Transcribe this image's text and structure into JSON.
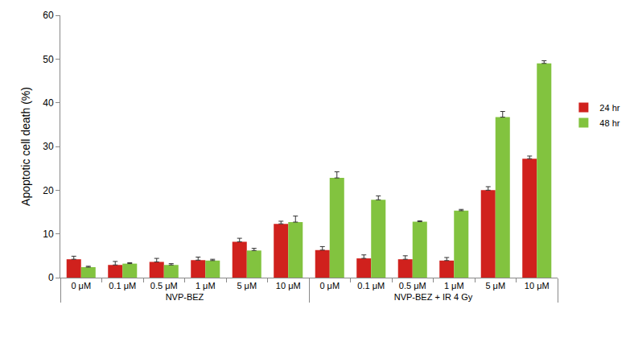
{
  "chart_data": {
    "type": "bar",
    "y_label": "Apoptotic cell death (%)",
    "categories": [
      "0 μM",
      "0.1 μM",
      "0.5 μM",
      "1 μM",
      "5 μM",
      "10 μM",
      "0 μM",
      "0.1 μM",
      "0.5 μM",
      "1 μM",
      "5 μM",
      "10 μM"
    ],
    "groups": [
      "NVP-BEZ",
      "NVP-BEZ",
      "NVP-BEZ",
      "NVP-BEZ",
      "NVP-BEZ",
      "NVP-BEZ",
      "NVP-BEZ + IR 4 Gy",
      "NVP-BEZ + IR 4 Gy",
      "NVP-BEZ + IR 4 Gy",
      "NVP-BEZ + IR 4 Gy",
      "NVP-BEZ + IR 4 Gy",
      "NVP-BEZ + IR 4 Gy"
    ],
    "series": [
      {
        "name": "24 hr",
        "color": "#d0211d",
        "values": [
          4.2,
          2.9,
          3.6,
          4.0,
          8.2,
          12.3,
          6.3,
          4.4,
          4.2,
          3.9,
          20.0,
          27.2
        ],
        "errors": [
          0.7,
          0.8,
          0.8,
          0.7,
          0.8,
          0.6,
          0.8,
          0.8,
          0.8,
          0.7,
          0.8,
          0.6
        ]
      },
      {
        "name": "48 hr",
        "color": "#82c33f",
        "values": [
          2.4,
          3.2,
          2.9,
          3.9,
          6.2,
          12.7,
          22.8,
          17.8,
          12.8,
          15.3,
          36.7,
          49.0
        ],
        "errors": [
          0.2,
          0.2,
          0.3,
          0.3,
          0.5,
          1.4,
          1.4,
          0.9,
          0.2,
          0.3,
          1.3,
          0.6
        ]
      }
    ],
    "ylim": [
      0,
      60
    ],
    "yticks": [
      0,
      10,
      20,
      30,
      40,
      50,
      60
    ],
    "grid": false,
    "legend": "right"
  }
}
